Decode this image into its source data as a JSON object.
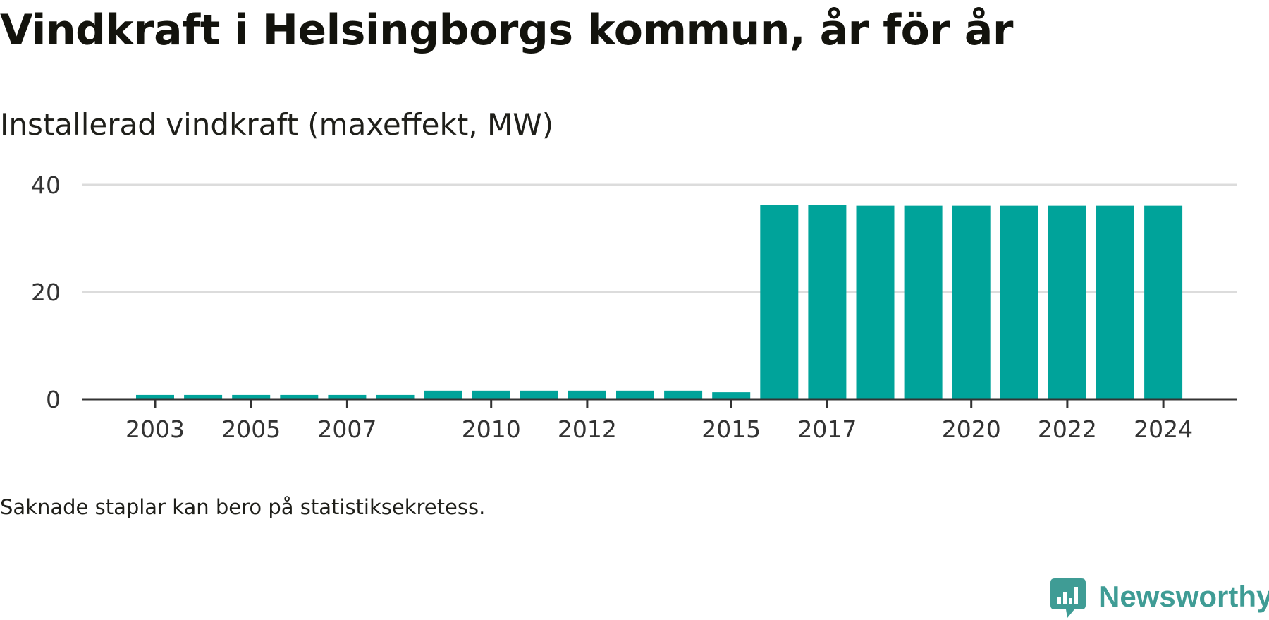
{
  "title": "Vindkraft i Helsingborgs kommun, år för år",
  "subtitle": "Installerad vindkraft (maxeffekt, MW)",
  "footnote": "Saknade staplar kan bero på statistiksekretess.",
  "brand": {
    "name": "Newsworthy",
    "icon": "chart-bubble-icon",
    "color": "#3f9c95"
  },
  "chart_data": {
    "type": "bar",
    "bar_color": "#00a39a",
    "grid_color": "#dcdcdc",
    "axis_color": "#333333",
    "grid": true,
    "categories": [
      "2003",
      "2004",
      "2005",
      "2006",
      "2007",
      "2008",
      "2009",
      "2010",
      "2011",
      "2012",
      "2013",
      "2014",
      "2015",
      "2016",
      "2017",
      "2018",
      "2019",
      "2020",
      "2021",
      "2022",
      "2023",
      "2024"
    ],
    "values": [
      0.8,
      0.8,
      0.8,
      0.8,
      0.8,
      0.8,
      1.6,
      1.6,
      1.6,
      1.6,
      1.6,
      1.6,
      1.3,
      36.2,
      36.2,
      36.1,
      36.1,
      36.1,
      36.1,
      36.1,
      36.1,
      36.1
    ],
    "x_tick_labels": [
      "2003",
      "2005",
      "2007",
      "2010",
      "2012",
      "2015",
      "2017",
      "2020",
      "2022",
      "2024"
    ],
    "y_ticks": [
      0,
      20,
      40
    ],
    "ylim": [
      0,
      40
    ],
    "xlabel": "",
    "ylabel": ""
  }
}
